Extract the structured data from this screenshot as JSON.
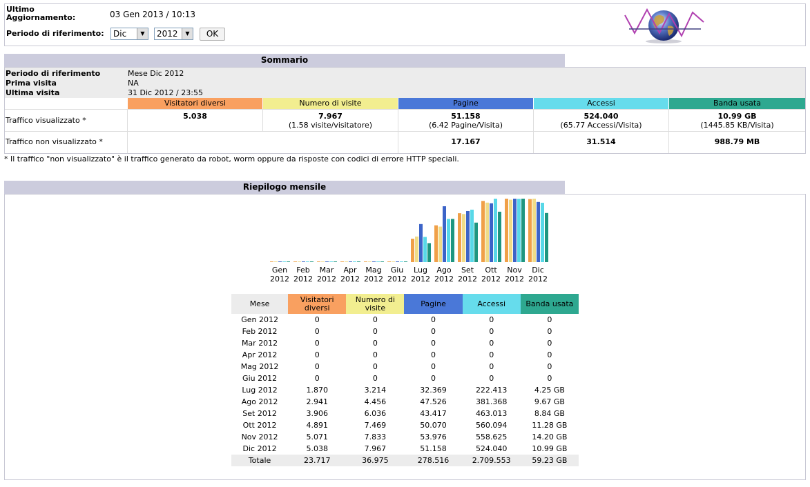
{
  "header": {
    "last_update_label_1": "Ultimo",
    "last_update_label_2": "Aggiornamento:",
    "last_update_value": "03 Gen 2013 / 10:13",
    "period_label": "Periodo di riferimento:",
    "month_select": "Dic",
    "year_select": "2012",
    "ok_label": "OK"
  },
  "summary": {
    "title": "Sommario",
    "period_label": "Periodo di riferimento",
    "period_value": "Mese Dic 2012",
    "first_visit_label": "Prima visita",
    "first_visit_value": "NA",
    "last_visit_label": "Ultima visita",
    "last_visit_value": "31 Dic 2012 / 23:55",
    "columns": [
      "Visitatori diversi",
      "Numero di visite",
      "Pagine",
      "Accessi",
      "Banda usata"
    ],
    "viewed_label": "Traffico visualizzato *",
    "viewed": {
      "visitors": "5.038",
      "visits": "7.967",
      "visits_sub": "(1.58 visite/visitatore)",
      "pages": "51.158",
      "pages_sub": "(6.42 Pagine/Visita)",
      "hits": "524.040",
      "hits_sub": "(65.77 Accessi/Visita)",
      "bandwidth": "10.99 GB",
      "bandwidth_sub": "(1445.85 KB/Visita)"
    },
    "not_viewed_label": "Traffico non visualizzato *",
    "not_viewed": {
      "pages": "17.167",
      "hits": "31.514",
      "bandwidth": "988.79 MB"
    },
    "footnote": "* Il traffico \"non visualizzato\" è il traffico generato da robot, worm oppure da risposte con codici di errore HTTP speciali."
  },
  "monthly": {
    "title": "Riepilogo mensile",
    "headers": {
      "month": "Mese",
      "visitors": "Visitatori diversi",
      "visits": "Numero di visite",
      "pages": "Pagine",
      "hits": "Accessi",
      "bandwidth": "Banda usata"
    },
    "rows": [
      {
        "month": "Gen 2012",
        "visitors": "0",
        "visits": "0",
        "pages": "0",
        "hits": "0",
        "bandwidth": "0"
      },
      {
        "month": "Feb 2012",
        "visitors": "0",
        "visits": "0",
        "pages": "0",
        "hits": "0",
        "bandwidth": "0"
      },
      {
        "month": "Mar 2012",
        "visitors": "0",
        "visits": "0",
        "pages": "0",
        "hits": "0",
        "bandwidth": "0"
      },
      {
        "month": "Apr 2012",
        "visitors": "0",
        "visits": "0",
        "pages": "0",
        "hits": "0",
        "bandwidth": "0"
      },
      {
        "month": "Mag 2012",
        "visitors": "0",
        "visits": "0",
        "pages": "0",
        "hits": "0",
        "bandwidth": "0"
      },
      {
        "month": "Giu 2012",
        "visitors": "0",
        "visits": "0",
        "pages": "0",
        "hits": "0",
        "bandwidth": "0"
      },
      {
        "month": "Lug 2012",
        "visitors": "1.870",
        "visits": "3.214",
        "pages": "32.369",
        "hits": "222.413",
        "bandwidth": "4.25 GB"
      },
      {
        "month": "Ago 2012",
        "visitors": "2.941",
        "visits": "4.456",
        "pages": "47.526",
        "hits": "381.368",
        "bandwidth": "9.67 GB"
      },
      {
        "month": "Set 2012",
        "visitors": "3.906",
        "visits": "6.036",
        "pages": "43.417",
        "hits": "463.013",
        "bandwidth": "8.84 GB"
      },
      {
        "month": "Ott 2012",
        "visitors": "4.891",
        "visits": "7.469",
        "pages": "50.070",
        "hits": "560.094",
        "bandwidth": "11.28 GB"
      },
      {
        "month": "Nov 2012",
        "visitors": "5.071",
        "visits": "7.833",
        "pages": "53.976",
        "hits": "558.625",
        "bandwidth": "14.20 GB"
      },
      {
        "month": "Dic 2012",
        "visitors": "5.038",
        "visits": "7.967",
        "pages": "51.158",
        "hits": "524.040",
        "bandwidth": "10.99 GB"
      }
    ],
    "total": {
      "month": "Totale",
      "visitors": "23.717",
      "visits": "36.975",
      "pages": "278.516",
      "hits": "2.709.553",
      "bandwidth": "59.23 GB"
    }
  },
  "chart_data": {
    "type": "bar",
    "categories": [
      [
        "Gen",
        "2012"
      ],
      [
        "Feb",
        "2012"
      ],
      [
        "Mar",
        "2012"
      ],
      [
        "Apr",
        "2012"
      ],
      [
        "Mag",
        "2012"
      ],
      [
        "Giu",
        "2012"
      ],
      [
        "Lug",
        "2012"
      ],
      [
        "Ago",
        "2012"
      ],
      [
        "Set",
        "2012"
      ],
      [
        "Ott",
        "2012"
      ],
      [
        "Nov",
        "2012"
      ],
      [
        "Dic",
        "2012"
      ]
    ],
    "series": [
      {
        "key": "visitors",
        "color": "#f0a048",
        "values": [
          0,
          0,
          0,
          0,
          0,
          0,
          1870,
          2941,
          3906,
          4891,
          5071,
          5038
        ]
      },
      {
        "key": "visits",
        "color": "#f0dc88",
        "values": [
          0,
          0,
          0,
          0,
          0,
          0,
          3214,
          4456,
          6036,
          7469,
          7833,
          7967
        ]
      },
      {
        "key": "pages",
        "color": "#3c64c8",
        "values": [
          0,
          0,
          0,
          0,
          0,
          0,
          32369,
          47526,
          43417,
          50070,
          53976,
          51158
        ]
      },
      {
        "key": "hits",
        "color": "#58d8e8",
        "values": [
          0,
          0,
          0,
          0,
          0,
          0,
          222413,
          381368,
          463013,
          560094,
          558625,
          524040
        ]
      },
      {
        "key": "bandwidth",
        "color": "#1e9680",
        "values": [
          0,
          0,
          0,
          0,
          0,
          0,
          4.25,
          9.67,
          8.84,
          11.28,
          14.2,
          10.99
        ]
      }
    ]
  },
  "colors": {
    "visitors": "#f9a060",
    "visits": "#f2ee90",
    "pages": "#4a78d8",
    "hits": "#66dcec",
    "bandwidth": "#2ea890",
    "section_header": "#ccccdd"
  }
}
